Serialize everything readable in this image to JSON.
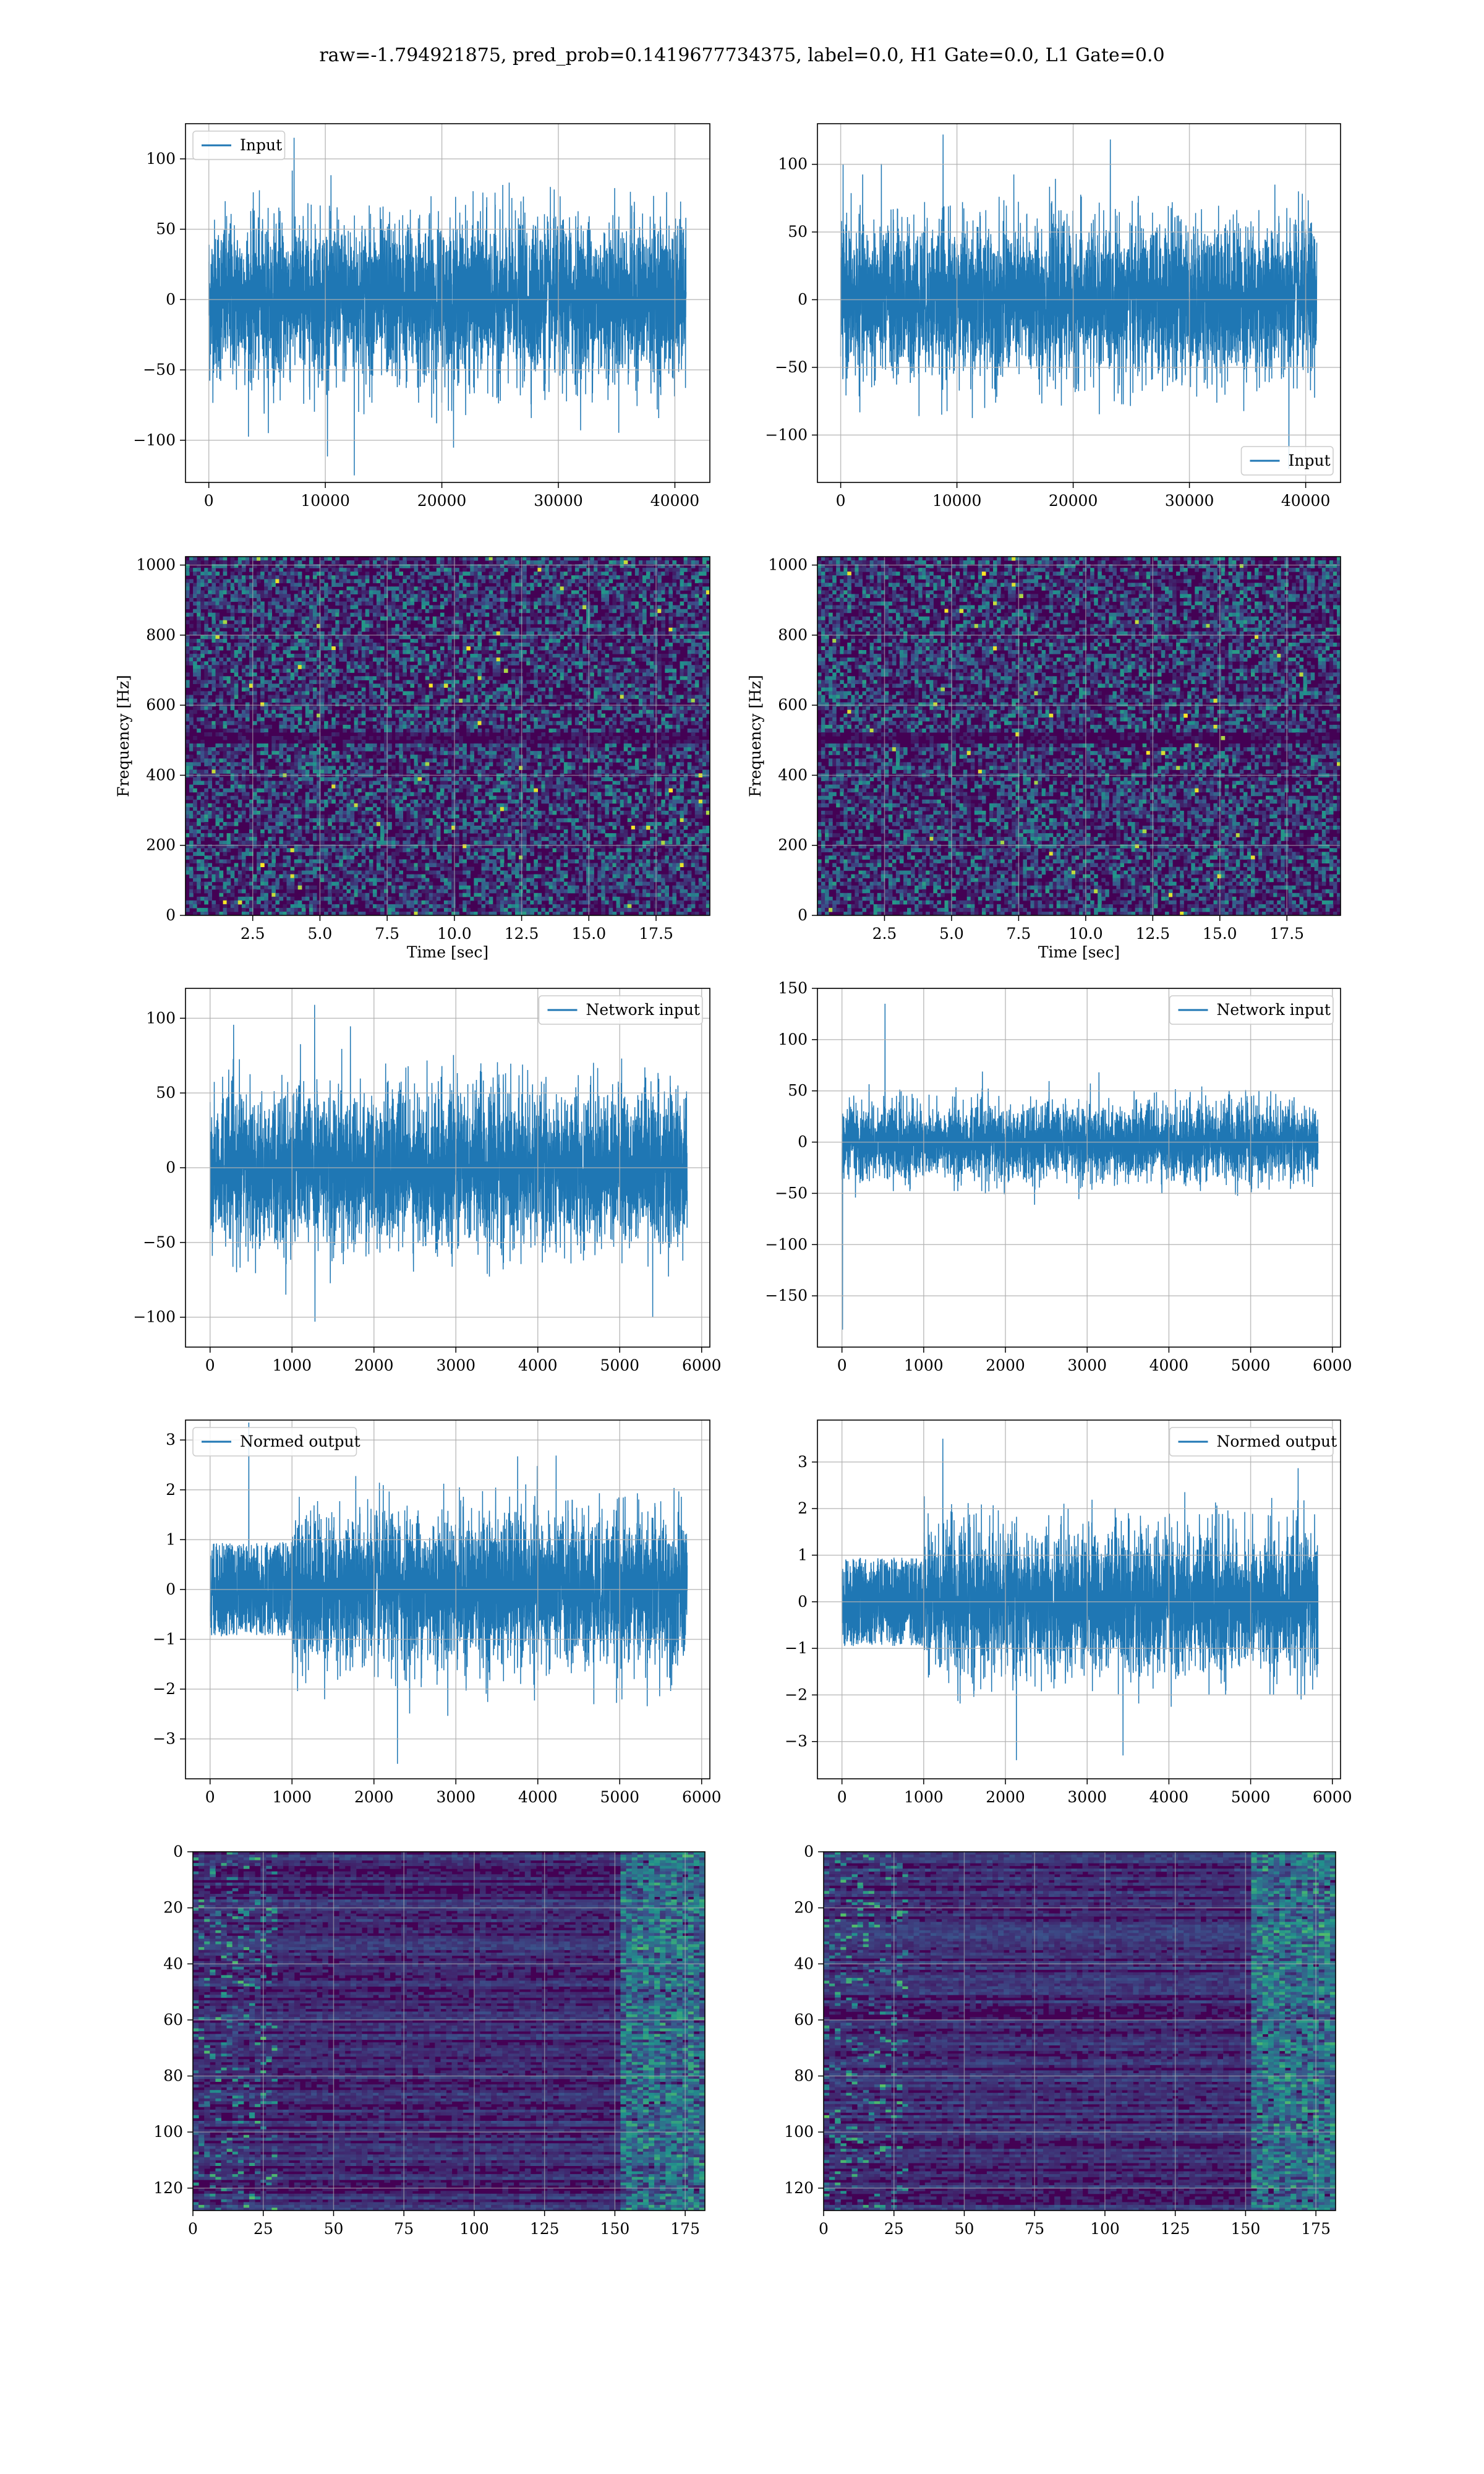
{
  "title": "raw=-1.794921875, pred_prob=0.1419677734375, label=0.0, H1 Gate=0.0, L1 Gate=0.0",
  "colors": {
    "series": "#1f77b4",
    "grid": "#b0b0b0",
    "viridis_dark": "#440154",
    "viridis_mid": "#3b528b",
    "viridis_teal": "#21918c",
    "viridis_green": "#5ec962",
    "viridis_yellow": "#fde725"
  },
  "chart_data": [
    {
      "id": "input_h1",
      "type": "line",
      "legend": "Input",
      "legend_loc": "upper left",
      "grid": true,
      "xlim": [
        -2000,
        43000
      ],
      "ylim": [
        -130,
        125
      ],
      "xticks": [
        0,
        10000,
        20000,
        30000,
        40000
      ],
      "yticks": [
        -100,
        -50,
        0,
        50,
        100
      ],
      "signal": {
        "x_start": 0,
        "x_end": 40960,
        "std": 28,
        "peak": 115,
        "min_peak": -125
      }
    },
    {
      "id": "input_l1",
      "type": "line",
      "legend": "Input",
      "legend_loc": "lower right",
      "grid": true,
      "xlim": [
        -2000,
        43000
      ],
      "ylim": [
        -135,
        130
      ],
      "xticks": [
        0,
        10000,
        20000,
        30000,
        40000
      ],
      "yticks": [
        -100,
        -50,
        0,
        50,
        100
      ],
      "signal": {
        "x_start": 0,
        "x_end": 40960,
        "std": 28,
        "peak": 122,
        "min_peak": -125
      }
    },
    {
      "id": "spec_h1",
      "type": "heatmap",
      "grid": true,
      "colormap": "viridis",
      "xlabel": "Time [sec]",
      "ylabel": "Frequency [Hz]",
      "xlim": [
        0,
        19.5
      ],
      "ylim": [
        0,
        1024
      ],
      "xticks": [
        2.5,
        5.0,
        7.5,
        10.0,
        12.5,
        15.0,
        17.5
      ],
      "yticks": [
        0,
        200,
        400,
        600,
        800,
        1000
      ]
    },
    {
      "id": "spec_l1",
      "type": "heatmap",
      "grid": true,
      "colormap": "viridis",
      "xlabel": "Time [sec]",
      "ylabel": "Frequency [Hz]",
      "xlim": [
        0,
        19.5
      ],
      "ylim": [
        0,
        1024
      ],
      "xticks": [
        2.5,
        5.0,
        7.5,
        10.0,
        12.5,
        15.0,
        17.5
      ],
      "yticks": [
        0,
        200,
        400,
        600,
        800,
        1000
      ]
    },
    {
      "id": "net_h1",
      "type": "line",
      "legend": "Network input",
      "legend_loc": "upper right",
      "grid": true,
      "xlim": [
        -300,
        6100
      ],
      "ylim": [
        -120,
        120
      ],
      "xticks": [
        0,
        1000,
        2000,
        3000,
        4000,
        5000,
        6000
      ],
      "yticks": [
        -100,
        -50,
        0,
        50,
        100
      ],
      "signal": {
        "x_start": 0,
        "x_end": 5824,
        "std": 25,
        "peak": 109,
        "min_peak": -103
      }
    },
    {
      "id": "net_l1",
      "type": "line",
      "legend": "Network input",
      "legend_loc": "upper right",
      "grid": true,
      "xlim": [
        -300,
        6100
      ],
      "ylim": [
        -200,
        150
      ],
      "xticks": [
        0,
        1000,
        2000,
        3000,
        4000,
        5000,
        6000
      ],
      "yticks": [
        -150,
        -100,
        -50,
        0,
        50,
        100,
        150
      ],
      "signal": {
        "x_start": 0,
        "x_end": 5824,
        "std": 18,
        "peak": 135,
        "min_peak": -183
      }
    },
    {
      "id": "norm_h1",
      "type": "line",
      "legend": "Normed output",
      "legend_loc": "upper left",
      "grid": true,
      "xlim": [
        -300,
        6100
      ],
      "ylim": [
        -3.8,
        3.4
      ],
      "xticks": [
        0,
        1000,
        2000,
        3000,
        4000,
        5000,
        6000
      ],
      "yticks": [
        -3,
        -2,
        -1,
        0,
        1,
        2,
        3
      ],
      "signal": {
        "x_start": 0,
        "x_end": 5824,
        "step_x": 1000,
        "pre_amp": 0.95,
        "std": 0.75,
        "peak": 3.35,
        "min_peak": -3.5
      }
    },
    {
      "id": "norm_l1",
      "type": "line",
      "legend": "Normed output",
      "legend_loc": "upper right",
      "grid": true,
      "xlim": [
        -300,
        6100
      ],
      "ylim": [
        -3.8,
        3.9
      ],
      "xticks": [
        0,
        1000,
        2000,
        3000,
        4000,
        5000,
        6000
      ],
      "yticks": [
        -3,
        -2,
        -1,
        0,
        1,
        2,
        3
      ],
      "signal": {
        "x_start": 0,
        "x_end": 5824,
        "step_x": 1000,
        "pre_amp": 0.95,
        "std": 0.75,
        "peak": 3.5,
        "min_peak": -3.4
      }
    },
    {
      "id": "feat_h1",
      "type": "heatmap",
      "grid": true,
      "colormap": "viridis",
      "y_inverted": true,
      "xlim": [
        0,
        182
      ],
      "ylim": [
        128,
        0
      ],
      "xticks": [
        0,
        25,
        50,
        75,
        100,
        125,
        150,
        175
      ],
      "yticks": [
        0,
        20,
        40,
        60,
        80,
        100,
        120
      ]
    },
    {
      "id": "feat_l1",
      "type": "heatmap",
      "grid": true,
      "colormap": "viridis",
      "y_inverted": true,
      "xlim": [
        0,
        182
      ],
      "ylim": [
        128,
        0
      ],
      "xticks": [
        0,
        25,
        50,
        75,
        100,
        125,
        150,
        175
      ],
      "yticks": [
        0,
        20,
        40,
        60,
        80,
        100,
        120
      ]
    }
  ]
}
